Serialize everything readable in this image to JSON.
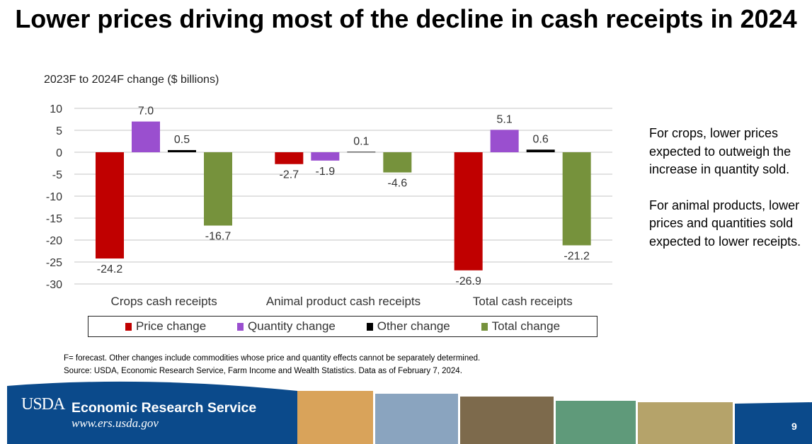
{
  "title": "Lower prices driving most of the decline in cash receipts in 2024",
  "side_text": [
    "For crops, lower prices expected to outweigh the increase in quantity sold.",
    "For animal products, lower prices and quantities sold expected to lower receipts."
  ],
  "notes": {
    "line1": "F= forecast. Other changes include commodities whose price and quantity effects cannot be separately determined.",
    "line2": "Source: USDA, Economic Research Service, Farm Income and Wealth Statistics.   Data as of February 7, 2024."
  },
  "footer": {
    "logo_text": "USDA",
    "org": "Economic Research Service",
    "url": "www.ers.usda.gov",
    "page_number": "9",
    "brand_color": "#0b4a8b"
  },
  "chart_data": {
    "type": "bar",
    "ylabel": "2023F to 2024F change ($ billions)",
    "categories": [
      "Crops cash receipts",
      "Animal product cash receipts",
      "Total cash receipts"
    ],
    "series": [
      {
        "name": "Price change",
        "color": "#c00000",
        "values": [
          -24.2,
          -2.7,
          -26.9
        ]
      },
      {
        "name": "Quantity change",
        "color": "#9a4fcf",
        "values": [
          7.0,
          -1.9,
          5.1
        ]
      },
      {
        "name": "Other change",
        "color": "#000000",
        "values": [
          0.5,
          0.1,
          0.6
        ]
      },
      {
        "name": "Total change",
        "color": "#76923c",
        "values": [
          -16.7,
          -4.6,
          -21.2
        ]
      }
    ],
    "ylim": [
      -30,
      10
    ],
    "yticks": [
      10,
      5,
      0,
      -5,
      -10,
      -15,
      -20,
      -25,
      -30
    ],
    "grid": true,
    "legend": "bottom"
  }
}
